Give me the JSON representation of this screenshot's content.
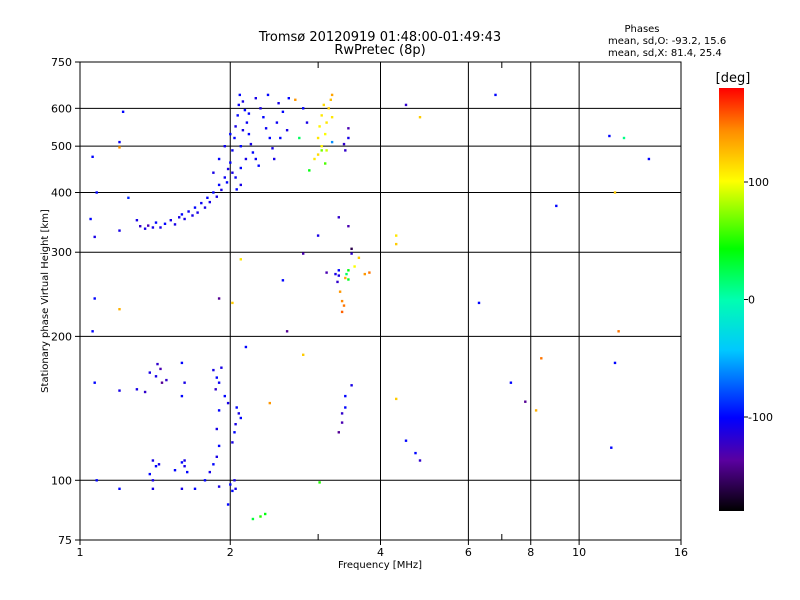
{
  "header": {
    "title_line1": "Tromsø 20120919 01:48:00-01:49:43",
    "title_line2": "RwPretec (8p)",
    "stats_title": "Phases",
    "stats_o": "mean, sd,O:  -93.2, 15.6",
    "stats_x": "mean, sd,X:   81.4, 25.4"
  },
  "chart_data": {
    "type": "scatter",
    "xlabel": "Frequency [MHz]",
    "ylabel": "Stationary phase Virtual Height [km]",
    "x_scale": "log",
    "y_scale": "log",
    "xlim": [
      1,
      16
    ],
    "ylim": [
      75,
      750
    ],
    "x_ticks": [
      1,
      2,
      4,
      6,
      8,
      10,
      16
    ],
    "x_tick_labels": [
      "1",
      "2",
      "4",
      "6",
      "8",
      "10",
      "16"
    ],
    "x_minor_ticks": [
      3,
      7
    ],
    "y_ticks": [
      75,
      100,
      200,
      300,
      400,
      500,
      600,
      750
    ],
    "y_tick_labels": [
      "75",
      "100",
      "200",
      "300",
      "400",
      "500",
      "600",
      "750"
    ],
    "grid": true,
    "colorbar": {
      "label": "[deg]",
      "range": [
        -180,
        180
      ],
      "ticks": [
        -100,
        0,
        100
      ],
      "tick_labels": [
        "-100",
        "0",
        "100"
      ]
    },
    "points": [
      [
        1.06,
        475,
        -100
      ],
      [
        1.07,
        323,
        -110
      ],
      [
        1.05,
        352,
        -100
      ],
      [
        1.08,
        400,
        -100
      ],
      [
        1.2,
        510,
        -105
      ],
      [
        1.22,
        590,
        -100
      ],
      [
        1.2,
        497,
        140
      ],
      [
        1.2,
        333,
        -110
      ],
      [
        1.25,
        390,
        -90
      ],
      [
        1.3,
        350,
        -110
      ],
      [
        1.32,
        340,
        -120
      ],
      [
        1.35,
        336,
        -110
      ],
      [
        1.37,
        341,
        -130
      ],
      [
        1.4,
        338,
        -110
      ],
      [
        1.42,
        346,
        -100
      ],
      [
        1.45,
        338,
        -110
      ],
      [
        1.48,
        344,
        -100
      ],
      [
        1.52,
        350,
        -110
      ],
      [
        1.55,
        343,
        -110
      ],
      [
        1.58,
        355,
        -110
      ],
      [
        1.6,
        360,
        -100
      ],
      [
        1.62,
        352,
        -110
      ],
      [
        1.65,
        365,
        -105
      ],
      [
        1.68,
        358,
        -110
      ],
      [
        1.7,
        372,
        -100
      ],
      [
        1.72,
        363,
        -110
      ],
      [
        1.75,
        380,
        -105
      ],
      [
        1.78,
        372,
        -110
      ],
      [
        1.8,
        390,
        -100
      ],
      [
        1.82,
        382,
        -110
      ],
      [
        1.85,
        400,
        -100
      ],
      [
        1.88,
        392,
        -110
      ],
      [
        1.9,
        415,
        -100
      ],
      [
        1.92,
        405,
        -110
      ],
      [
        1.95,
        430,
        -105
      ],
      [
        1.97,
        420,
        -100
      ],
      [
        1.98,
        448,
        -110
      ],
      [
        2.0,
        462,
        -100
      ],
      [
        2.02,
        490,
        -105
      ],
      [
        2.04,
        520,
        -100
      ],
      [
        2.05,
        550,
        -110
      ],
      [
        2.07,
        580,
        -100
      ],
      [
        2.08,
        610,
        -105
      ],
      [
        2.09,
        640,
        -100
      ],
      [
        2.12,
        620,
        -110
      ],
      [
        2.14,
        595,
        -100
      ],
      [
        2.16,
        560,
        -105
      ],
      [
        2.18,
        530,
        -100
      ],
      [
        2.2,
        505,
        -110
      ],
      [
        2.22,
        485,
        -100
      ],
      [
        2.25,
        470,
        -105
      ],
      [
        2.28,
        455,
        -100
      ],
      [
        2.3,
        600,
        -110
      ],
      [
        2.33,
        575,
        -100
      ],
      [
        2.36,
        545,
        -105
      ],
      [
        2.4,
        520,
        -100
      ],
      [
        2.43,
        495,
        -110
      ],
      [
        1.9,
        470,
        -100
      ],
      [
        1.85,
        440,
        -110
      ],
      [
        1.95,
        500,
        -105
      ],
      [
        2.0,
        530,
        -100
      ],
      [
        2.02,
        440,
        -110
      ],
      [
        2.05,
        430,
        -105
      ],
      [
        2.1,
        450,
        -100
      ],
      [
        2.15,
        470,
        -110
      ],
      [
        2.1,
        500,
        -100
      ],
      [
        2.1,
        415,
        -110
      ],
      [
        2.06,
        406,
        -100
      ],
      [
        2.12,
        540,
        -110
      ],
      [
        2.18,
        585,
        -100
      ],
      [
        2.25,
        630,
        -110
      ],
      [
        2.38,
        640,
        -100
      ],
      [
        2.5,
        615,
        -110
      ],
      [
        2.55,
        590,
        -100
      ],
      [
        2.48,
        560,
        -105
      ],
      [
        2.52,
        520,
        -100
      ],
      [
        2.45,
        470,
        -110
      ],
      [
        2.6,
        540,
        -110
      ],
      [
        2.62,
        630,
        -100
      ],
      [
        2.7,
        625,
        140
      ],
      [
        2.75,
        520,
        20
      ],
      [
        2.8,
        600,
        -100
      ],
      [
        2.85,
        560,
        -110
      ],
      [
        2.95,
        470,
        110
      ],
      [
        3.0,
        480,
        115
      ],
      [
        3.0,
        520,
        110
      ],
      [
        3.02,
        550,
        105
      ],
      [
        3.05,
        580,
        110
      ],
      [
        3.05,
        500,
        105
      ],
      [
        3.08,
        610,
        115
      ],
      [
        3.1,
        530,
        100
      ],
      [
        3.12,
        560,
        110
      ],
      [
        3.15,
        600,
        120
      ],
      [
        3.18,
        625,
        125
      ],
      [
        3.2,
        640,
        135
      ],
      [
        3.2,
        575,
        110
      ],
      [
        3.12,
        490,
        90
      ],
      [
        3.1,
        460,
        60
      ],
      [
        2.88,
        445,
        40
      ],
      [
        3.05,
        490,
        70
      ],
      [
        3.2,
        510,
        -60
      ],
      [
        3.4,
        490,
        -120
      ],
      [
        3.45,
        520,
        -110
      ],
      [
        3.45,
        545,
        -130
      ],
      [
        3.38,
        505,
        -120
      ],
      [
        4.5,
        610,
        -120
      ],
      [
        4.8,
        575,
        120
      ],
      [
        6.8,
        640,
        -100
      ],
      [
        9.0,
        375,
        -100
      ],
      [
        11.5,
        525,
        -100
      ],
      [
        12.3,
        520,
        10
      ],
      [
        13.8,
        470,
        -100
      ],
      [
        11.8,
        400,
        120
      ],
      [
        3.3,
        355,
        -120
      ],
      [
        3.45,
        340,
        -130
      ],
      [
        3.0,
        325,
        -110
      ],
      [
        3.5,
        305,
        -160
      ],
      [
        3.5,
        298,
        -120
      ],
      [
        4.3,
        325,
        110
      ],
      [
        4.3,
        312,
        120
      ],
      [
        3.62,
        292,
        120
      ],
      [
        3.55,
        280,
        100
      ],
      [
        3.45,
        275,
        40
      ],
      [
        3.4,
        265,
        130
      ],
      [
        3.72,
        270,
        140
      ],
      [
        3.8,
        272,
        150
      ],
      [
        3.45,
        263,
        35
      ],
      [
        3.42,
        270,
        20
      ],
      [
        3.32,
        248,
        140
      ],
      [
        3.35,
        237,
        145
      ],
      [
        3.38,
        232,
        150
      ],
      [
        3.35,
        225,
        155
      ],
      [
        3.3,
        275,
        -100
      ],
      [
        3.3,
        268,
        -110
      ],
      [
        3.28,
        260,
        -120
      ],
      [
        3.25,
        270,
        -110
      ],
      [
        3.12,
        272,
        -130
      ],
      [
        2.8,
        298,
        -130
      ],
      [
        2.55,
        262,
        -100
      ],
      [
        2.1,
        290,
        110
      ],
      [
        2.6,
        205,
        -140
      ],
      [
        2.8,
        183,
        120
      ],
      [
        1.9,
        240,
        -140
      ],
      [
        2.02,
        235,
        120
      ],
      [
        1.2,
        228,
        130
      ],
      [
        1.07,
        240,
        -100
      ],
      [
        1.06,
        205,
        -100
      ],
      [
        6.3,
        235,
        -100
      ],
      [
        12.0,
        205,
        150
      ],
      [
        8.4,
        180,
        150
      ],
      [
        11.8,
        176,
        -100
      ],
      [
        7.3,
        160,
        -100
      ],
      [
        7.8,
        146,
        -140
      ],
      [
        8.2,
        140,
        130
      ],
      [
        11.6,
        117,
        -100
      ],
      [
        4.5,
        121,
        -100
      ],
      [
        4.7,
        114,
        -100
      ],
      [
        4.8,
        110,
        -120
      ],
      [
        4.3,
        148,
        120
      ],
      [
        3.4,
        142,
        -100
      ],
      [
        3.35,
        138,
        -120
      ],
      [
        3.4,
        150,
        -100
      ],
      [
        3.35,
        132,
        -130
      ],
      [
        3.3,
        126,
        -140
      ],
      [
        3.5,
        158,
        -110
      ],
      [
        2.4,
        145,
        140
      ],
      [
        2.15,
        190,
        -100
      ],
      [
        1.43,
        175,
        -120
      ],
      [
        1.45,
        171,
        -130
      ],
      [
        1.42,
        165,
        -110
      ],
      [
        1.46,
        160,
        -140
      ],
      [
        1.38,
        168,
        -110
      ],
      [
        1.49,
        162,
        -120
      ],
      [
        1.3,
        155,
        -110
      ],
      [
        1.35,
        153,
        -120
      ],
      [
        1.07,
        160,
        -100
      ],
      [
        1.2,
        154,
        -110
      ],
      [
        1.6,
        176,
        -100
      ],
      [
        1.62,
        160,
        -110
      ],
      [
        1.6,
        150,
        -100
      ],
      [
        1.85,
        170,
        -110
      ],
      [
        1.88,
        164,
        -100
      ],
      [
        1.9,
        160,
        -105
      ],
      [
        1.92,
        172,
        -110
      ],
      [
        1.87,
        155,
        -120
      ],
      [
        1.95,
        150,
        -100
      ],
      [
        1.98,
        145,
        -110
      ],
      [
        2.06,
        142,
        -100
      ],
      [
        2.08,
        138,
        -110
      ],
      [
        2.1,
        135,
        -100
      ],
      [
        2.05,
        131,
        -110
      ],
      [
        2.04,
        126,
        -100
      ],
      [
        2.02,
        120,
        -110
      ],
      [
        1.9,
        140,
        -100
      ],
      [
        1.88,
        128,
        -110
      ],
      [
        1.9,
        118,
        -100
      ],
      [
        1.88,
        112,
        -110
      ],
      [
        1.85,
        108,
        -100
      ],
      [
        1.82,
        104,
        -110
      ],
      [
        1.78,
        100,
        -100
      ],
      [
        1.4,
        110,
        -110
      ],
      [
        1.42,
        107,
        -100
      ],
      [
        1.44,
        108,
        -110
      ],
      [
        1.38,
        103,
        -100
      ],
      [
        1.4,
        100,
        -110
      ],
      [
        1.6,
        109,
        -100
      ],
      [
        1.62,
        107,
        -110
      ],
      [
        1.64,
        104,
        -100
      ],
      [
        1.62,
        110,
        -110
      ],
      [
        1.55,
        105,
        -100
      ],
      [
        1.6,
        96,
        -110
      ],
      [
        1.7,
        96,
        -100
      ],
      [
        1.9,
        97,
        -110
      ],
      [
        2.0,
        98,
        -100
      ],
      [
        2.05,
        96,
        -110
      ],
      [
        2.02,
        95,
        -100
      ],
      [
        2.04,
        100,
        -110
      ],
      [
        1.2,
        96,
        -100
      ],
      [
        1.08,
        100,
        -100
      ],
      [
        1.4,
        96,
        -110
      ],
      [
        1.98,
        89,
        -100
      ],
      [
        2.3,
        84,
        50
      ],
      [
        2.35,
        85,
        40
      ],
      [
        2.22,
        83,
        30
      ],
      [
        3.02,
        99,
        50
      ]
    ]
  }
}
